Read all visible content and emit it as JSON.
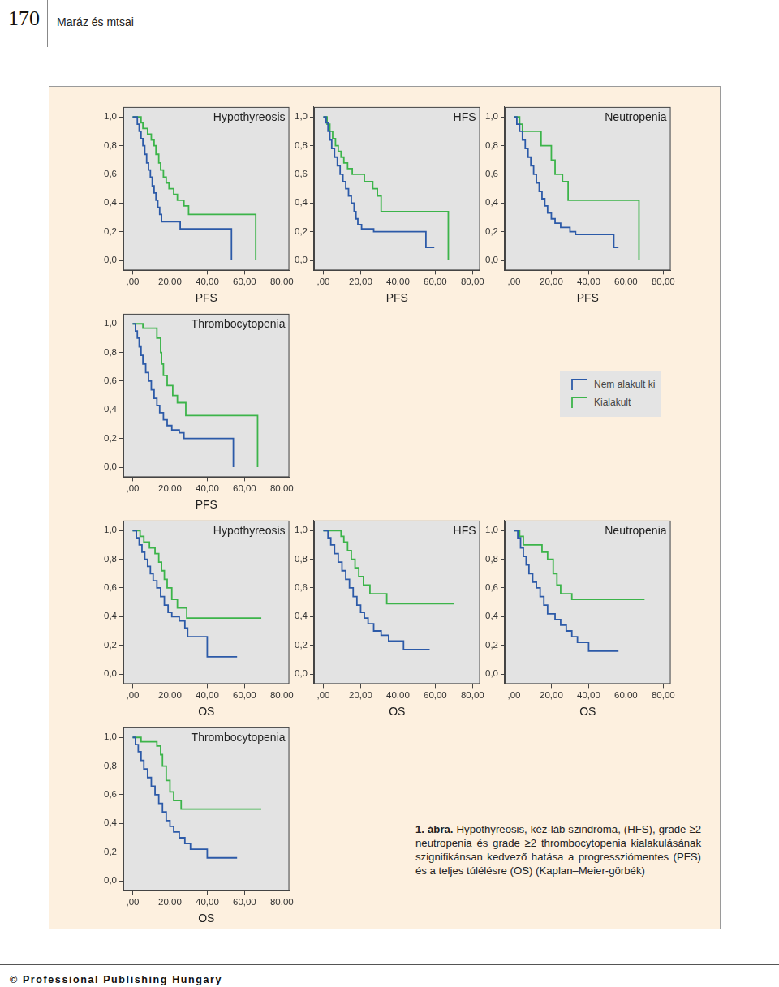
{
  "page": {
    "page_number": "170",
    "running_head": "Maráz és mtsai",
    "caption_label": "1. ábra.",
    "caption": "Hypothyreosis, kéz-láb szindróma, (HFS), grade ≥2 neutropenia és grade ≥2 thrombocytopenia kialakulásának szignifikánsan kedvező hatása a progressziómentes (PFS) és a teljes túlélésre (OS) (Kaplan–Meier-görbék)",
    "footer": "© Professional Publishing Hungary"
  },
  "chart_data": [
    {
      "type": "line",
      "title": "Hypothyreosis",
      "x_label": "PFS",
      "xlim": [
        -5,
        84
      ],
      "ylim": [
        -0.07,
        1.07
      ],
      "xticks": [
        {
          "value": 0,
          "label": ",00"
        },
        {
          "value": 20,
          "label": "20,00"
        },
        {
          "value": 40,
          "label": "40,00"
        },
        {
          "value": 60,
          "label": "60,00"
        },
        {
          "value": 80,
          "label": "80,00"
        }
      ],
      "yticks": [
        {
          "value": 0,
          "label": "0,0"
        },
        {
          "value": 0.2,
          "label": "0,2"
        },
        {
          "value": 0.4,
          "label": "0,4"
        },
        {
          "value": 0.6,
          "label": "0,6"
        },
        {
          "value": 0.8,
          "label": "0,8"
        },
        {
          "value": 1,
          "label": "1,0"
        }
      ],
      "grid": false,
      "line_style": "step",
      "series": [
        {
          "name": "Nem alakult ki",
          "color": "#2c5aa8",
          "x": [
            0,
            2.5,
            3.5,
            4.5,
            5.5,
            6.5,
            7.5,
            8.5,
            9.5,
            10.5,
            11.5,
            12.5,
            13.5,
            14.5,
            15.5,
            25.5,
            53
          ],
          "values": [
            1,
            0.95,
            0.9,
            0.85,
            0.8,
            0.74,
            0.68,
            0.63,
            0.58,
            0.52,
            0.47,
            0.42,
            0.37,
            0.32,
            0.27,
            0.22,
            0
          ]
        },
        {
          "name": "Kialakult",
          "color": "#3cb44a",
          "x": [
            0,
            4.5,
            5.5,
            8,
            10,
            11.5,
            12.5,
            14,
            15,
            16.5,
            18,
            19.5,
            22,
            24,
            27.5,
            30,
            66
          ],
          "values": [
            1,
            0.96,
            0.92,
            0.88,
            0.84,
            0.8,
            0.74,
            0.68,
            0.63,
            0.58,
            0.54,
            0.5,
            0.46,
            0.42,
            0.38,
            0.32,
            0
          ]
        }
      ]
    },
    {
      "type": "line",
      "title": "HFS",
      "x_label": "PFS",
      "xlim": [
        -5,
        84
      ],
      "ylim": [
        -0.07,
        1.07
      ],
      "xticks": [
        {
          "value": 0,
          "label": ",00"
        },
        {
          "value": 20,
          "label": "20,00"
        },
        {
          "value": 40,
          "label": "40,00"
        },
        {
          "value": 60,
          "label": "60,00"
        },
        {
          "value": 80,
          "label": "80,00"
        }
      ],
      "yticks": [
        {
          "value": 0,
          "label": "0,0"
        },
        {
          "value": 0.2,
          "label": "0,2"
        },
        {
          "value": 0.4,
          "label": "0,4"
        },
        {
          "value": 0.6,
          "label": "0,6"
        },
        {
          "value": 0.8,
          "label": "0,8"
        },
        {
          "value": 1,
          "label": "1,0"
        }
      ],
      "grid": false,
      "line_style": "step",
      "series": [
        {
          "name": "Nem alakult ki",
          "color": "#2c5aa8",
          "x": [
            0,
            1.5,
            2.5,
            3.5,
            4.5,
            6,
            7.5,
            9,
            10.5,
            12,
            13.5,
            15,
            16.5,
            17.5,
            18.5,
            20.5,
            27,
            55,
            59.5
          ],
          "values": [
            1,
            0.96,
            0.9,
            0.84,
            0.78,
            0.72,
            0.66,
            0.6,
            0.55,
            0.5,
            0.45,
            0.4,
            0.34,
            0.29,
            0.25,
            0.22,
            0.2,
            0.09,
            0.09
          ]
        },
        {
          "name": "Kialakult",
          "color": "#3cb44a",
          "x": [
            0,
            2,
            3.5,
            5,
            6.5,
            8,
            9.5,
            11,
            13,
            15.5,
            22,
            26.5,
            29,
            31,
            67
          ],
          "values": [
            1,
            0.95,
            0.9,
            0.85,
            0.8,
            0.76,
            0.72,
            0.68,
            0.64,
            0.6,
            0.55,
            0.5,
            0.45,
            0.34,
            0
          ]
        }
      ]
    },
    {
      "type": "line",
      "title": "Neutropenia",
      "x_label": "PFS",
      "xlim": [
        -5,
        84
      ],
      "ylim": [
        -0.07,
        1.07
      ],
      "xticks": [
        {
          "value": 0,
          "label": ",00"
        },
        {
          "value": 20,
          "label": "20,00"
        },
        {
          "value": 40,
          "label": "40,00"
        },
        {
          "value": 60,
          "label": "60,00"
        },
        {
          "value": 80,
          "label": "80,00"
        }
      ],
      "yticks": [
        {
          "value": 0,
          "label": "0,0"
        },
        {
          "value": 0.2,
          "label": "0,2"
        },
        {
          "value": 0.4,
          "label": "0,4"
        },
        {
          "value": 0.6,
          "label": "0,6"
        },
        {
          "value": 0.8,
          "label": "0,8"
        },
        {
          "value": 1,
          "label": "1,0"
        }
      ],
      "grid": false,
      "line_style": "step",
      "series": [
        {
          "name": "Nem alakult ki",
          "color": "#2c5aa8",
          "x": [
            0,
            1.5,
            3,
            4.5,
            6,
            7.5,
            9,
            10.5,
            12,
            13.5,
            15,
            16.5,
            18,
            20,
            22,
            25,
            30,
            33,
            53.5,
            56
          ],
          "values": [
            1,
            0.95,
            0.9,
            0.84,
            0.78,
            0.72,
            0.66,
            0.6,
            0.54,
            0.48,
            0.43,
            0.38,
            0.33,
            0.29,
            0.26,
            0.23,
            0.2,
            0.18,
            0.09,
            0.09
          ]
        },
        {
          "name": "Kialakult",
          "color": "#3cb44a",
          "x": [
            0,
            3,
            4.5,
            14.5,
            20,
            22,
            26,
            29,
            67
          ],
          "values": [
            1,
            0.95,
            0.9,
            0.8,
            0.7,
            0.6,
            0.55,
            0.42,
            0
          ]
        }
      ]
    },
    {
      "type": "line",
      "title": "Thrombocytopenia",
      "x_label": "PFS",
      "xlim": [
        -5,
        84
      ],
      "ylim": [
        -0.07,
        1.07
      ],
      "xticks": [
        {
          "value": 0,
          "label": ",00"
        },
        {
          "value": 20,
          "label": "20,00"
        },
        {
          "value": 40,
          "label": "40,00"
        },
        {
          "value": 60,
          "label": "60,00"
        },
        {
          "value": 80,
          "label": "80,00"
        }
      ],
      "yticks": [
        {
          "value": 0,
          "label": "0,0"
        },
        {
          "value": 0.2,
          "label": "0,2"
        },
        {
          "value": 0.4,
          "label": "0,4"
        },
        {
          "value": 0.6,
          "label": "0,6"
        },
        {
          "value": 0.8,
          "label": "0,8"
        },
        {
          "value": 1,
          "label": "1,0"
        }
      ],
      "grid": false,
      "line_style": "step",
      "series": [
        {
          "name": "Nem alakult ki",
          "color": "#2c5aa8",
          "x": [
            0,
            1.5,
            2.5,
            3.5,
            4.5,
            5.5,
            7,
            8.5,
            10,
            11.5,
            13,
            14.5,
            16.5,
            18.5,
            21,
            25,
            27.5,
            54
          ],
          "values": [
            1,
            0.95,
            0.9,
            0.84,
            0.78,
            0.72,
            0.66,
            0.6,
            0.54,
            0.48,
            0.43,
            0.38,
            0.33,
            0.29,
            0.26,
            0.24,
            0.2,
            0
          ]
        },
        {
          "name": "Kialakult",
          "color": "#3cb44a",
          "x": [
            0,
            5.5,
            13,
            15,
            15.5,
            16.5,
            18.5,
            21.5,
            24,
            28.5,
            67
          ],
          "values": [
            1,
            0.97,
            0.9,
            0.8,
            0.72,
            0.64,
            0.57,
            0.5,
            0.45,
            0.36,
            0
          ]
        }
      ]
    },
    {
      "type": "line",
      "title": "Hypothyreosis",
      "x_label": "OS",
      "xlim": [
        -5,
        84
      ],
      "ylim": [
        -0.07,
        1.07
      ],
      "xticks": [
        {
          "value": 0,
          "label": ",00"
        },
        {
          "value": 20,
          "label": "20,00"
        },
        {
          "value": 40,
          "label": "40,00"
        },
        {
          "value": 60,
          "label": "60,00"
        },
        {
          "value": 80,
          "label": "80,00"
        }
      ],
      "yticks": [
        {
          "value": 0,
          "label": "0,0"
        },
        {
          "value": 0.2,
          "label": "0,2"
        },
        {
          "value": 0.4,
          "label": "0,4"
        },
        {
          "value": 0.6,
          "label": "0,6"
        },
        {
          "value": 0.8,
          "label": "0,8"
        },
        {
          "value": 1,
          "label": "1,0"
        }
      ],
      "grid": false,
      "line_style": "step",
      "series": [
        {
          "name": "Nem alakult ki",
          "color": "#2c5aa8",
          "x": [
            0,
            2,
            3.5,
            5,
            6.5,
            8,
            9.5,
            11,
            13,
            15,
            17,
            19,
            21,
            25,
            28,
            29.5,
            40,
            56
          ],
          "values": [
            1,
            0.95,
            0.9,
            0.85,
            0.8,
            0.75,
            0.7,
            0.65,
            0.6,
            0.54,
            0.48,
            0.43,
            0.4,
            0.37,
            0.32,
            0.26,
            0.12,
            0.12
          ]
        },
        {
          "name": "Kialakult",
          "color": "#3cb44a",
          "x": [
            0,
            4,
            6,
            9,
            12,
            14,
            15.5,
            17,
            18.5,
            21,
            24,
            29,
            69
          ],
          "values": [
            1,
            0.96,
            0.92,
            0.88,
            0.84,
            0.78,
            0.72,
            0.66,
            0.6,
            0.52,
            0.46,
            0.39,
            0.39
          ]
        }
      ]
    },
    {
      "type": "line",
      "title": "HFS",
      "x_label": "OS",
      "xlim": [
        -5,
        84
      ],
      "ylim": [
        -0.07,
        1.07
      ],
      "xticks": [
        {
          "value": 0,
          "label": ",00"
        },
        {
          "value": 20,
          "label": "20,00"
        },
        {
          "value": 40,
          "label": "40,00"
        },
        {
          "value": 60,
          "label": "60,00"
        },
        {
          "value": 80,
          "label": "80,00"
        }
      ],
      "yticks": [
        {
          "value": 0,
          "label": "0,0"
        },
        {
          "value": 0.2,
          "label": "0,2"
        },
        {
          "value": 0.4,
          "label": "0,4"
        },
        {
          "value": 0.6,
          "label": "0,6"
        },
        {
          "value": 0.8,
          "label": "0,8"
        },
        {
          "value": 1,
          "label": "1,0"
        }
      ],
      "grid": false,
      "line_style": "step",
      "series": [
        {
          "name": "Nem alakult ki",
          "color": "#2c5aa8",
          "x": [
            0,
            2.5,
            4,
            6,
            8,
            10,
            12,
            14,
            16,
            18,
            20,
            22,
            24,
            27,
            31,
            35,
            43,
            57
          ],
          "values": [
            1,
            0.95,
            0.9,
            0.84,
            0.78,
            0.72,
            0.66,
            0.6,
            0.54,
            0.48,
            0.43,
            0.39,
            0.35,
            0.3,
            0.27,
            0.23,
            0.17,
            0.17
          ]
        },
        {
          "name": "Kialakult",
          "color": "#3cb44a",
          "x": [
            0,
            9.5,
            11,
            13,
            15,
            17,
            19,
            21.5,
            25,
            34,
            70
          ],
          "values": [
            1,
            0.96,
            0.92,
            0.86,
            0.8,
            0.74,
            0.68,
            0.62,
            0.56,
            0.49,
            0.49
          ]
        }
      ]
    },
    {
      "type": "line",
      "title": "Neutropenia",
      "x_label": "OS",
      "xlim": [
        -5,
        84
      ],
      "ylim": [
        -0.07,
        1.07
      ],
      "xticks": [
        {
          "value": 0,
          "label": ",00"
        },
        {
          "value": 20,
          "label": "20,00"
        },
        {
          "value": 40,
          "label": "40,00"
        },
        {
          "value": 60,
          "label": "60,00"
        },
        {
          "value": 80,
          "label": "80,00"
        }
      ],
      "yticks": [
        {
          "value": 0,
          "label": "0,0"
        },
        {
          "value": 0.2,
          "label": "0,2"
        },
        {
          "value": 0.4,
          "label": "0,4"
        },
        {
          "value": 0.6,
          "label": "0,6"
        },
        {
          "value": 0.8,
          "label": "0,8"
        },
        {
          "value": 1,
          "label": "1,0"
        }
      ],
      "grid": false,
      "line_style": "step",
      "series": [
        {
          "name": "Nem alakult ki",
          "color": "#2c5aa8",
          "x": [
            0,
            2,
            3.5,
            5,
            6.5,
            8,
            10,
            12,
            14,
            16,
            18,
            22,
            25,
            28,
            31,
            34,
            40,
            56
          ],
          "values": [
            1,
            0.95,
            0.88,
            0.82,
            0.76,
            0.7,
            0.64,
            0.6,
            0.54,
            0.48,
            0.42,
            0.38,
            0.34,
            0.3,
            0.26,
            0.22,
            0.16,
            0.16
          ]
        },
        {
          "name": "Kialakult",
          "color": "#3cb44a",
          "x": [
            0,
            3,
            5,
            15,
            18,
            21,
            23,
            25,
            31,
            70
          ],
          "values": [
            1,
            0.96,
            0.9,
            0.85,
            0.8,
            0.7,
            0.62,
            0.56,
            0.52,
            0.52
          ]
        }
      ]
    },
    {
      "type": "line",
      "title": "Thrombocytopenia",
      "x_label": "OS",
      "xlim": [
        -5,
        84
      ],
      "ylim": [
        -0.07,
        1.07
      ],
      "xticks": [
        {
          "value": 0,
          "label": ",00"
        },
        {
          "value": 20,
          "label": "20,00"
        },
        {
          "value": 40,
          "label": "40,00"
        },
        {
          "value": 60,
          "label": "60,00"
        },
        {
          "value": 80,
          "label": "80,00"
        }
      ],
      "yticks": [
        {
          "value": 0,
          "label": "0,0"
        },
        {
          "value": 0.2,
          "label": "0,2"
        },
        {
          "value": 0.4,
          "label": "0,4"
        },
        {
          "value": 0.6,
          "label": "0,6"
        },
        {
          "value": 0.8,
          "label": "0,8"
        },
        {
          "value": 1,
          "label": "1,0"
        }
      ],
      "grid": false,
      "line_style": "step",
      "series": [
        {
          "name": "Nem alakult ki",
          "color": "#2c5aa8",
          "x": [
            0,
            1.5,
            3,
            4.5,
            6,
            8,
            10,
            12,
            14,
            16,
            18,
            20,
            22,
            25,
            28,
            31,
            40,
            56
          ],
          "values": [
            1,
            0.95,
            0.9,
            0.84,
            0.78,
            0.72,
            0.66,
            0.6,
            0.54,
            0.48,
            0.42,
            0.38,
            0.34,
            0.3,
            0.26,
            0.22,
            0.16,
            0.16
          ]
        },
        {
          "name": "Kialakult",
          "color": "#3cb44a",
          "x": [
            0,
            4.5,
            13,
            15,
            16,
            18,
            20,
            22,
            26,
            69
          ],
          "values": [
            1,
            0.97,
            0.94,
            0.88,
            0.8,
            0.7,
            0.62,
            0.56,
            0.5,
            0.5
          ]
        }
      ]
    }
  ]
}
